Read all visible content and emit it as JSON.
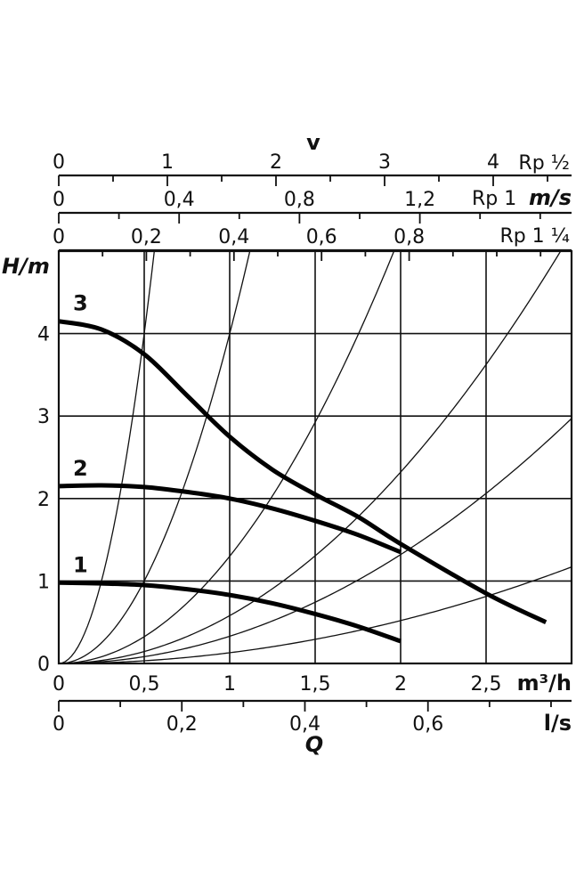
{
  "chart_data": {
    "type": "line",
    "y_axis": {
      "label": "H/m",
      "range": [
        0,
        5
      ],
      "ticks": [
        0,
        1,
        2,
        3,
        4
      ],
      "tick_labels": [
        "0",
        "1",
        "2",
        "3",
        "4"
      ]
    },
    "x_axis_primary": {
      "unit": "m³/h",
      "range": [
        0,
        3
      ],
      "ticks": [
        0,
        0.5,
        1,
        1.5,
        2,
        2.5
      ],
      "tick_labels": [
        "0",
        "0,5",
        "1",
        "1,5",
        "2",
        "2,5"
      ]
    },
    "x_axis_secondary": {
      "unit": "l/s",
      "name": "Q",
      "ticks": [
        0,
        0.2,
        0.4,
        0.6
      ],
      "tick_labels": [
        "0",
        "0,2",
        "0,4",
        "0,6"
      ]
    },
    "velocity_axes": {
      "title": "v",
      "unit": "m/s",
      "scales": [
        {
          "name": "Rp ½",
          "ticks": [
            0,
            1,
            2,
            3,
            4
          ],
          "tick_labels": [
            "0",
            "1",
            "2",
            "3",
            "4"
          ]
        },
        {
          "name": "Rp 1",
          "ticks": [
            0,
            0.4,
            0.8,
            1.2
          ],
          "tick_labels": [
            "0",
            "0,4",
            "0,8",
            "1,2"
          ]
        },
        {
          "name": "Rp 1 ¼",
          "ticks": [
            0,
            0.2,
            0.4,
            0.6,
            0.8
          ],
          "tick_labels": [
            "0",
            "0,2",
            "0,4",
            "0,6",
            "0,8"
          ]
        }
      ]
    },
    "grid": true,
    "pump_curves": [
      {
        "name": "1",
        "x": [
          0,
          0.25,
          0.5,
          0.75,
          1.0,
          1.25,
          1.5,
          1.75,
          2.0
        ],
        "y": [
          0.98,
          0.97,
          0.95,
          0.9,
          0.83,
          0.73,
          0.6,
          0.45,
          0.27
        ]
      },
      {
        "name": "2",
        "x": [
          0,
          0.25,
          0.5,
          0.75,
          1.0,
          1.25,
          1.5,
          1.75,
          2.0
        ],
        "y": [
          2.15,
          2.16,
          2.14,
          2.08,
          2.0,
          1.88,
          1.73,
          1.56,
          1.35
        ]
      },
      {
        "name": "3",
        "x": [
          0,
          0.25,
          0.5,
          0.75,
          1.0,
          1.25,
          1.5,
          1.75,
          2.0,
          2.5,
          2.85
        ],
        "y": [
          4.15,
          4.05,
          3.75,
          3.25,
          2.75,
          2.35,
          2.05,
          1.78,
          1.45,
          0.85,
          0.5
        ]
      }
    ],
    "system_curves": [
      {
        "k": 16
      },
      {
        "k": 4
      },
      {
        "k": 1.3
      },
      {
        "k": 0.58
      },
      {
        "k": 0.33
      },
      {
        "k": 0.13
      }
    ]
  }
}
